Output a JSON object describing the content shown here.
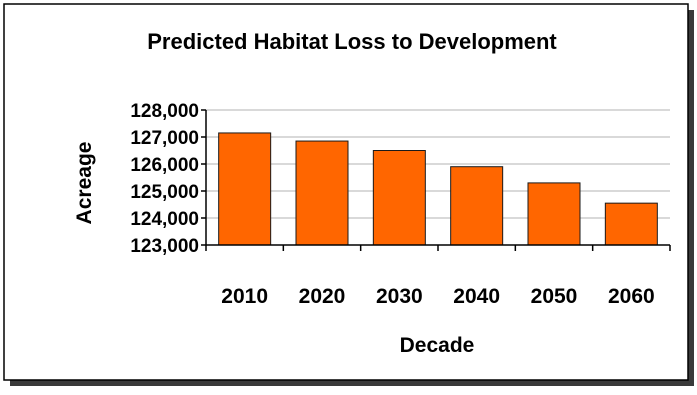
{
  "chart_data": {
    "type": "bar",
    "title": "Predicted Habitat Loss to Development",
    "xlabel": "Decade",
    "ylabel": "Acreage",
    "categories": [
      "2010",
      "2020",
      "2030",
      "2040",
      "2050",
      "2060"
    ],
    "values": [
      127150,
      126850,
      126500,
      125900,
      125300,
      124550
    ],
    "ylim": [
      123000,
      128000
    ],
    "yticks": [
      123000,
      124000,
      125000,
      126000,
      127000,
      128000
    ],
    "ytick_labels": [
      "123,000",
      "124,000",
      "125,000",
      "126,000",
      "127,000",
      "128,000"
    ],
    "grid": true,
    "legend": "none",
    "colors": {
      "bar": "#ff6600",
      "bar_edge": "#1a1a1a",
      "grid": "#b3b3b3",
      "text": "#000000"
    }
  }
}
